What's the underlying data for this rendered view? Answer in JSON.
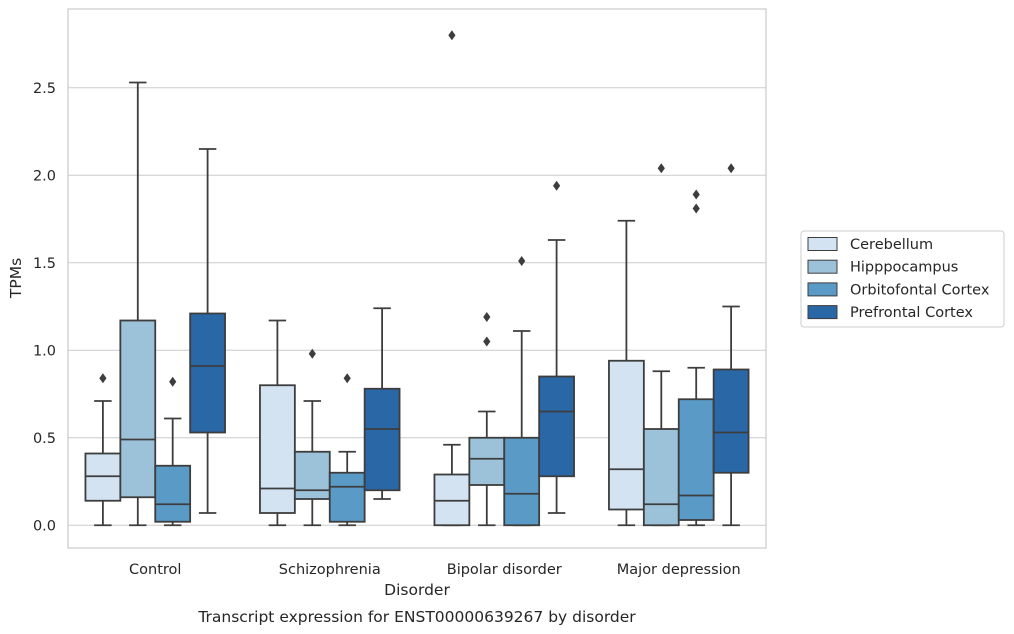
{
  "chart_data": {
    "type": "box",
    "title": "",
    "caption": "Transcript expression for ENST00000639267 by disorder",
    "xlabel": "Disorder",
    "ylabel": "TPMs",
    "ylim": [
      -0.13,
      2.95
    ],
    "yticks": [
      0.0,
      0.5,
      1.0,
      1.5,
      2.0,
      2.5
    ],
    "ytick_labels": [
      "0.0",
      "0.5",
      "1.0",
      "1.5",
      "2.0",
      "2.5"
    ],
    "grid": "horizontal",
    "legend_position": "right",
    "categories": [
      "Control",
      "Schizophrenia",
      "Bipolar disorder",
      "Major depression"
    ],
    "series": [
      {
        "name": "Cerebellum",
        "color": "#d3e3f2",
        "boxes": [
          {
            "whisker_low": 0.0,
            "q1": 0.14,
            "median": 0.28,
            "q3": 0.41,
            "whisker_high": 0.71,
            "outliers": [
              0.84
            ]
          },
          {
            "whisker_low": 0.0,
            "q1": 0.07,
            "median": 0.21,
            "q3": 0.8,
            "whisker_high": 1.17,
            "outliers": []
          },
          {
            "whisker_low": 0.0,
            "q1": 0.0,
            "median": 0.14,
            "q3": 0.29,
            "whisker_high": 0.46,
            "outliers": [
              2.8
            ]
          },
          {
            "whisker_low": 0.0,
            "q1": 0.09,
            "median": 0.32,
            "q3": 0.94,
            "whisker_high": 1.74,
            "outliers": []
          }
        ]
      },
      {
        "name": "Hipppocampus",
        "color": "#9cc2da",
        "boxes": [
          {
            "whisker_low": 0.0,
            "q1": 0.16,
            "median": 0.49,
            "q3": 1.17,
            "whisker_high": 2.53,
            "outliers": []
          },
          {
            "whisker_low": 0.0,
            "q1": 0.15,
            "median": 0.2,
            "q3": 0.42,
            "whisker_high": 0.71,
            "outliers": [
              0.98
            ]
          },
          {
            "whisker_low": 0.0,
            "q1": 0.23,
            "median": 0.38,
            "q3": 0.5,
            "whisker_high": 0.65,
            "outliers": [
              1.05,
              1.19
            ]
          },
          {
            "whisker_low": 0.0,
            "q1": 0.0,
            "median": 0.12,
            "q3": 0.55,
            "whisker_high": 0.88,
            "outliers": [
              2.04
            ]
          }
        ]
      },
      {
        "name": "Orbitofontal Cortex",
        "color": "#5a9ac7",
        "boxes": [
          {
            "whisker_low": 0.0,
            "q1": 0.02,
            "median": 0.12,
            "q3": 0.34,
            "whisker_high": 0.61,
            "outliers": [
              0.82
            ]
          },
          {
            "whisker_low": 0.0,
            "q1": 0.02,
            "median": 0.22,
            "q3": 0.3,
            "whisker_high": 0.42,
            "outliers": [
              0.84
            ]
          },
          {
            "whisker_low": 0.0,
            "q1": 0.0,
            "median": 0.18,
            "q3": 0.5,
            "whisker_high": 1.11,
            "outliers": [
              1.51
            ]
          },
          {
            "whisker_low": 0.0,
            "q1": 0.03,
            "median": 0.17,
            "q3": 0.72,
            "whisker_high": 0.9,
            "outliers": [
              1.81,
              1.89
            ]
          }
        ]
      },
      {
        "name": "Prefrontal Cortex",
        "color": "#2a67a6",
        "boxes": [
          {
            "whisker_low": 0.07,
            "q1": 0.53,
            "median": 0.91,
            "q3": 1.21,
            "whisker_high": 2.15,
            "outliers": []
          },
          {
            "whisker_low": 0.15,
            "q1": 0.2,
            "median": 0.55,
            "q3": 0.78,
            "whisker_high": 1.24,
            "outliers": []
          },
          {
            "whisker_low": 0.07,
            "q1": 0.28,
            "median": 0.65,
            "q3": 0.85,
            "whisker_high": 1.63,
            "outliers": [
              1.94
            ]
          },
          {
            "whisker_low": 0.0,
            "q1": 0.3,
            "median": 0.53,
            "q3": 0.89,
            "whisker_high": 1.25,
            "outliers": [
              2.04
            ]
          }
        ]
      }
    ]
  }
}
